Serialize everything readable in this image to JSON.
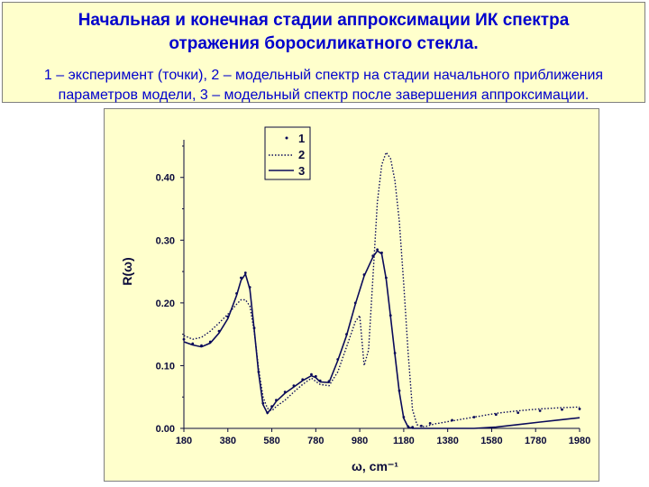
{
  "header": {
    "title": "Начальная и конечная стадии аппроксимации ИК спектра отражения боросиликатного стекла.",
    "subtitle": "1 – эксперимент (точки), 2 – модельный спектр на стадии начального приближения параметров модели, 3 – модельный спектр после завершения аппроксимации."
  },
  "chart_data": {
    "type": "line",
    "xlabel": "ω, cm⁻¹",
    "ylabel": "R(ω)",
    "xlim": [
      180,
      1980
    ],
    "ylim": [
      0,
      0.46
    ],
    "xticks": [
      "180",
      "380",
      "580",
      "780",
      "980",
      "1180",
      "1380",
      "1580",
      "1780",
      "1980"
    ],
    "yticks": [
      "0.00",
      "0.10",
      "0.20",
      "0.30",
      "0.40"
    ],
    "legend_position": "top-right",
    "colors": {
      "curve": "#0a0a5a",
      "background": "#ffffcc",
      "text": "#0000cc"
    },
    "series": [
      {
        "name": "1",
        "style": "points",
        "x": [
          180,
          220,
          260,
          300,
          340,
          380,
          420,
          440,
          460,
          480,
          500,
          520,
          540,
          560,
          580,
          600,
          640,
          680,
          720,
          760,
          780,
          800,
          840,
          880,
          920,
          960,
          1000,
          1040,
          1060,
          1080,
          1100,
          1120,
          1140,
          1160,
          1180,
          1200,
          1220,
          1260,
          1300,
          1400,
          1500,
          1600,
          1700,
          1800,
          1900,
          1980
        ],
        "y": [
          0.142,
          0.135,
          0.132,
          0.138,
          0.155,
          0.178,
          0.215,
          0.24,
          0.248,
          0.225,
          0.16,
          0.09,
          0.04,
          0.025,
          0.035,
          0.045,
          0.058,
          0.068,
          0.078,
          0.086,
          0.083,
          0.076,
          0.075,
          0.11,
          0.15,
          0.2,
          0.245,
          0.275,
          0.285,
          0.28,
          0.24,
          0.18,
          0.12,
          0.06,
          0.018,
          0.003,
          0.002,
          0.004,
          0.008,
          0.013,
          0.018,
          0.022,
          0.025,
          0.028,
          0.03,
          0.031
        ]
      },
      {
        "name": "2",
        "style": "dotted",
        "x": [
          180,
          220,
          260,
          300,
          340,
          380,
          420,
          440,
          460,
          480,
          500,
          520,
          540,
          560,
          580,
          600,
          640,
          680,
          720,
          760,
          780,
          800,
          840,
          880,
          920,
          960,
          980,
          1000,
          1020,
          1040,
          1060,
          1080,
          1100,
          1120,
          1140,
          1160,
          1180,
          1200,
          1220,
          1240,
          1260,
          1280,
          1300,
          1320,
          1400,
          1500,
          1600,
          1700,
          1800,
          1900,
          1980
        ],
        "y": [
          0.148,
          0.142,
          0.145,
          0.155,
          0.168,
          0.182,
          0.198,
          0.205,
          0.205,
          0.195,
          0.155,
          0.095,
          0.05,
          0.032,
          0.028,
          0.035,
          0.045,
          0.058,
          0.07,
          0.08,
          0.075,
          0.07,
          0.068,
          0.09,
          0.13,
          0.17,
          0.18,
          0.1,
          0.125,
          0.24,
          0.36,
          0.42,
          0.44,
          0.43,
          0.395,
          0.33,
          0.23,
          0.12,
          0.03,
          0.006,
          0.003,
          0.003,
          0.005,
          0.007,
          0.012,
          0.018,
          0.024,
          0.028,
          0.031,
          0.033,
          0.034
        ]
      },
      {
        "name": "3",
        "style": "solid",
        "x": [
          180,
          220,
          260,
          300,
          340,
          380,
          420,
          440,
          460,
          480,
          500,
          520,
          540,
          560,
          580,
          600,
          640,
          680,
          720,
          760,
          780,
          800,
          840,
          880,
          920,
          960,
          1000,
          1040,
          1060,
          1080,
          1100,
          1120,
          1140,
          1160,
          1180,
          1200,
          1220,
          1260,
          1300,
          1400,
          1500,
          1600,
          1700,
          1800,
          1900,
          1980
        ],
        "y": [
          0.138,
          0.133,
          0.13,
          0.136,
          0.152,
          0.175,
          0.212,
          0.236,
          0.246,
          0.222,
          0.158,
          0.088,
          0.038,
          0.024,
          0.033,
          0.043,
          0.056,
          0.066,
          0.076,
          0.084,
          0.081,
          0.074,
          0.073,
          0.108,
          0.148,
          0.198,
          0.243,
          0.273,
          0.283,
          0.278,
          0.238,
          0.178,
          0.118,
          0.058,
          0.016,
          0.002,
          0.0,
          0.0,
          0.0,
          0.0,
          0.0,
          0.002,
          0.006,
          0.01,
          0.014,
          0.017
        ]
      }
    ]
  }
}
